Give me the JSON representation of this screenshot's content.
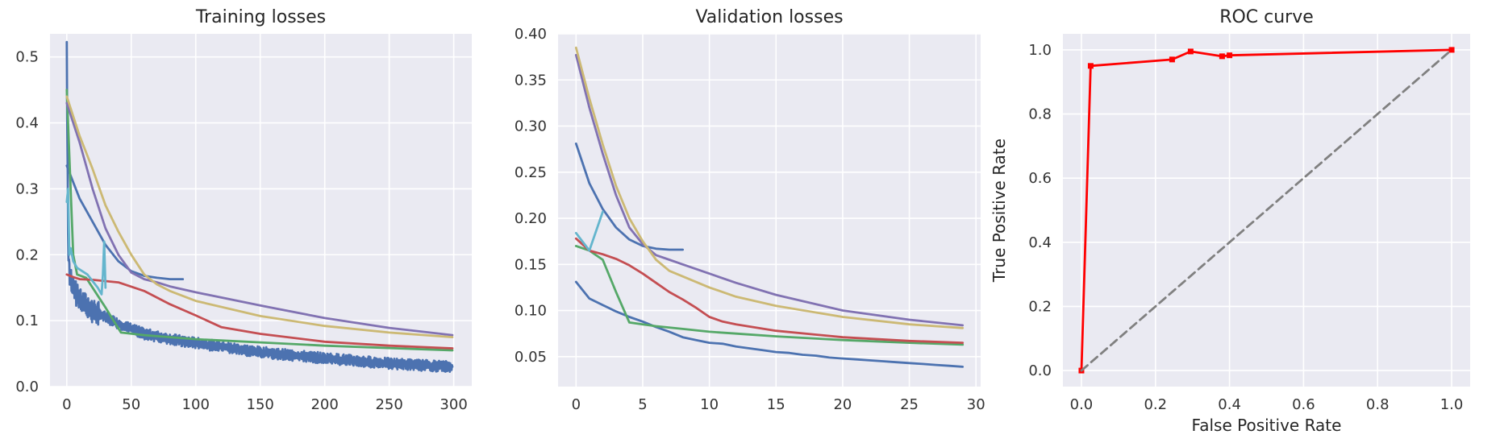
{
  "chart_data": [
    {
      "type": "line",
      "title": "Training losses",
      "xlabel": "",
      "ylabel": "",
      "xlim": [
        -13,
        314
      ],
      "ylim": [
        0,
        0.535
      ],
      "xticks": [
        "0",
        "50",
        "100",
        "150",
        "200",
        "250",
        "300"
      ],
      "yticks": [
        "0.0",
        "0.1",
        "0.2",
        "0.3",
        "0.4",
        "0.5"
      ],
      "grid": true,
      "legend": "none",
      "series": [
        {
          "color": "#4c72b0",
          "noise": 0.006,
          "x": [
            0,
            1,
            2,
            5,
            10,
            20,
            40,
            60,
            80,
            100,
            150,
            200,
            250,
            299
          ],
          "y": [
            0.51,
            0.22,
            0.17,
            0.15,
            0.13,
            0.115,
            0.095,
            0.08,
            0.072,
            0.066,
            0.052,
            0.043,
            0.035,
            0.03
          ]
        },
        {
          "color": "#4c72b0",
          "x": [
            0,
            5,
            10,
            20,
            30,
            40,
            50,
            60,
            70,
            80,
            90
          ],
          "y": [
            0.335,
            0.31,
            0.285,
            0.25,
            0.215,
            0.19,
            0.175,
            0.168,
            0.165,
            0.163,
            0.163
          ]
        },
        {
          "color": "#55a868",
          "x": [
            0,
            2,
            5,
            8,
            15,
            30,
            42,
            60,
            100,
            150,
            200,
            299
          ],
          "y": [
            0.45,
            0.35,
            0.2,
            0.17,
            0.165,
            0.12,
            0.082,
            0.078,
            0.072,
            0.067,
            0.062,
            0.055
          ]
        },
        {
          "color": "#c44e52",
          "x": [
            0,
            5,
            10,
            20,
            40,
            60,
            80,
            100,
            120,
            150,
            200,
            250,
            299
          ],
          "y": [
            0.17,
            0.166,
            0.163,
            0.162,
            0.158,
            0.145,
            0.125,
            0.108,
            0.09,
            0.08,
            0.068,
            0.062,
            0.058
          ]
        },
        {
          "color": "#8172b2",
          "x": [
            0,
            10,
            20,
            30,
            40,
            50,
            60,
            70,
            80,
            100,
            150,
            200,
            250,
            299
          ],
          "y": [
            0.43,
            0.37,
            0.3,
            0.24,
            0.2,
            0.173,
            0.163,
            0.158,
            0.152,
            0.143,
            0.123,
            0.104,
            0.089,
            0.078
          ]
        },
        {
          "color": "#ccb974",
          "x": [
            0,
            10,
            20,
            30,
            40,
            50,
            60,
            70,
            80,
            100,
            150,
            200,
            250,
            299
          ],
          "y": [
            0.44,
            0.38,
            0.33,
            0.275,
            0.235,
            0.2,
            0.17,
            0.155,
            0.145,
            0.13,
            0.107,
            0.092,
            0.082,
            0.075
          ]
        },
        {
          "color": "#64b5cd",
          "x": [
            0,
            1,
            2,
            3,
            5,
            8,
            12,
            16,
            20,
            24,
            27,
            28,
            29,
            30
          ],
          "y": [
            0.28,
            0.3,
            0.2,
            0.21,
            0.19,
            0.18,
            0.175,
            0.17,
            0.16,
            0.15,
            0.14,
            0.17,
            0.22,
            0.15
          ]
        }
      ]
    },
    {
      "type": "line",
      "title": "Validation losses",
      "xlabel": "",
      "ylabel": "",
      "xlim": [
        -1.35,
        30.35
      ],
      "ylim": [
        0.0175,
        0.4
      ],
      "xticks": [
        "0",
        "5",
        "10",
        "15",
        "20",
        "25",
        "30"
      ],
      "yticks": [
        "0.05",
        "0.10",
        "0.15",
        "0.20",
        "0.25",
        "0.30",
        "0.35",
        "0.40"
      ],
      "grid": true,
      "legend": "none",
      "series": [
        {
          "color": "#4c72b0",
          "x": [
            0,
            1,
            2,
            3,
            4,
            5,
            6,
            7,
            8,
            9,
            10,
            11,
            12,
            13,
            14,
            15,
            16,
            17,
            18,
            19,
            20,
            21,
            22,
            23,
            24,
            25,
            26,
            27,
            28,
            29
          ],
          "y": [
            0.131,
            0.113,
            0.106,
            0.099,
            0.093,
            0.088,
            0.082,
            0.077,
            0.071,
            0.068,
            0.065,
            0.064,
            0.061,
            0.059,
            0.057,
            0.055,
            0.054,
            0.052,
            0.051,
            0.049,
            0.048,
            0.047,
            0.046,
            0.045,
            0.044,
            0.043,
            0.042,
            0.041,
            0.04,
            0.039
          ]
        },
        {
          "color": "#4c72b0",
          "x": [
            0,
            1,
            2,
            3,
            4,
            5,
            6,
            7,
            8
          ],
          "y": [
            0.281,
            0.238,
            0.21,
            0.19,
            0.177,
            0.17,
            0.167,
            0.166,
            0.166
          ]
        },
        {
          "color": "#55a868",
          "x": [
            0,
            1,
            2,
            3,
            4,
            5,
            6,
            8,
            10,
            12,
            15,
            20,
            25,
            29
          ],
          "y": [
            0.17,
            0.165,
            0.155,
            0.12,
            0.087,
            0.085,
            0.083,
            0.08,
            0.077,
            0.075,
            0.072,
            0.068,
            0.065,
            0.063
          ]
        },
        {
          "color": "#c44e52",
          "x": [
            0,
            1,
            2,
            3,
            4,
            5,
            6,
            7,
            8,
            9,
            10,
            11,
            12,
            15,
            20,
            25,
            29
          ],
          "y": [
            0.178,
            0.165,
            0.161,
            0.156,
            0.149,
            0.14,
            0.13,
            0.12,
            0.112,
            0.103,
            0.093,
            0.088,
            0.085,
            0.078,
            0.071,
            0.067,
            0.065
          ]
        },
        {
          "color": "#8172b2",
          "x": [
            0,
            1,
            2,
            3,
            4,
            5,
            6,
            7,
            8,
            10,
            12,
            15,
            20,
            25,
            29
          ],
          "y": [
            0.377,
            0.32,
            0.27,
            0.225,
            0.19,
            0.172,
            0.16,
            0.155,
            0.15,
            0.14,
            0.13,
            0.117,
            0.1,
            0.09,
            0.084
          ]
        },
        {
          "color": "#ccb974",
          "x": [
            0,
            1,
            2,
            3,
            4,
            5,
            6,
            7,
            8,
            10,
            12,
            15,
            20,
            25,
            29
          ],
          "y": [
            0.385,
            0.33,
            0.28,
            0.235,
            0.2,
            0.175,
            0.155,
            0.143,
            0.137,
            0.125,
            0.115,
            0.105,
            0.093,
            0.085,
            0.081
          ]
        },
        {
          "color": "#64b5cd",
          "x": [
            0,
            1,
            2
          ],
          "y": [
            0.184,
            0.165,
            0.207
          ]
        }
      ]
    },
    {
      "type": "line",
      "title": "ROC curve",
      "xlabel": "False Positive Rate",
      "ylabel": "True Positive Rate",
      "xlim": [
        -0.05,
        1.05
      ],
      "ylim": [
        -0.05,
        1.05
      ],
      "xticks": [
        "0.0",
        "0.2",
        "0.4",
        "0.6",
        "0.8",
        "1.0"
      ],
      "yticks": [
        "0.0",
        "0.2",
        "0.4",
        "0.6",
        "0.8",
        "1.0"
      ],
      "grid": true,
      "legend": "none",
      "series": [
        {
          "color": "#ff0000",
          "markers": true,
          "x": [
            0.0,
            0.025,
            0.245,
            0.295,
            0.38,
            0.4,
            1.0
          ],
          "y": [
            0.0,
            0.95,
            0.97,
            0.995,
            0.98,
            0.983,
            1.0
          ]
        },
        {
          "color": "#808080",
          "dashed": true,
          "x": [
            0,
            1
          ],
          "y": [
            0,
            1
          ]
        }
      ]
    }
  ]
}
